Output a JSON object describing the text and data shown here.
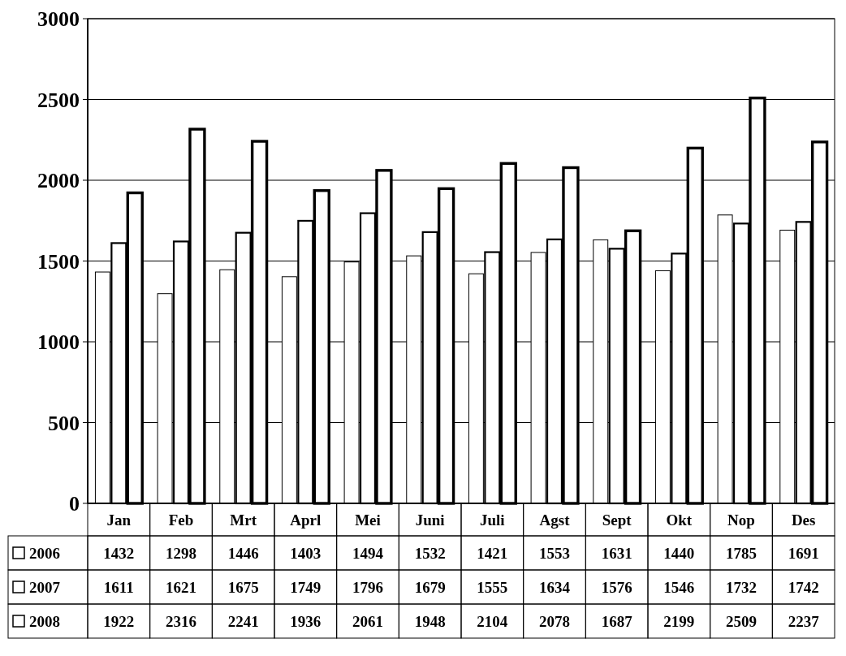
{
  "chart_data": {
    "type": "bar",
    "categories": [
      "Jan",
      "Feb",
      "Mrt",
      "Aprl",
      "Mei",
      "Juni",
      "Juli",
      "Agst",
      "Sept",
      "Okt",
      "Nop",
      "Des"
    ],
    "series": [
      {
        "name": "2006",
        "color": "#ffffff",
        "values": [
          1432,
          1298,
          1446,
          1403,
          1494,
          1532,
          1421,
          1553,
          1631,
          1440,
          1785,
          1691
        ]
      },
      {
        "name": "2007",
        "color": "#ffffff",
        "values": [
          1611,
          1621,
          1675,
          1749,
          1796,
          1679,
          1555,
          1634,
          1576,
          1546,
          1732,
          1742
        ]
      },
      {
        "name": "2008",
        "color": "#ffffff",
        "values": [
          1922,
          2316,
          2241,
          1936,
          2061,
          1948,
          2104,
          2078,
          1687,
          2199,
          2509,
          2237
        ]
      }
    ],
    "ylim": [
      0,
      3000
    ],
    "yticks": [
      0,
      500,
      1000,
      1500,
      2000,
      2500,
      3000
    ],
    "grid": "y",
    "data_labels": true,
    "legend": "bottom"
  }
}
